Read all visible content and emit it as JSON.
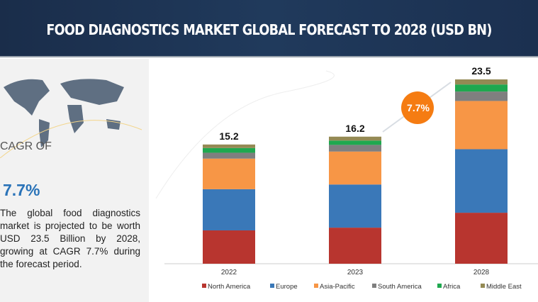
{
  "header": {
    "title": "FOOD DIAGNOSTICS MARKET GLOBAL FORECAST TO 2028 (USD BN)"
  },
  "left_panel": {
    "cagr_label": "CAGR OF",
    "cagr_value": "7.7%",
    "description": "The global food diagnostics market is projected to be worth USD 23.5 Billion by 2028, growing at CAGR 7.7% during the forecast period."
  },
  "chart_data": {
    "type": "bar",
    "stacked": true,
    "title": "FOOD DIAGNOSTICS MARKET GLOBAL FORECAST TO 2028 (USD BN)",
    "categories": [
      "2022",
      "2023",
      "2028"
    ],
    "totals": [
      "15.2",
      "16.2",
      "23.5"
    ],
    "cagr_badge": "7.7%",
    "legend_position": "bottom",
    "grid": false,
    "series": [
      {
        "name": "North America",
        "color": "#b8352f",
        "values": [
          4.25,
          4.6,
          6.5
        ]
      },
      {
        "name": "Europe",
        "color": "#3a78b8",
        "values": [
          5.25,
          5.5,
          8.1
        ]
      },
      {
        "name": "Asia-Pacific",
        "color": "#f79646",
        "values": [
          3.9,
          4.2,
          6.15
        ]
      },
      {
        "name": "South America",
        "color": "#7f7f7f",
        "values": [
          0.75,
          0.85,
          1.2
        ]
      },
      {
        "name": "Africa",
        "color": "#1fa84f",
        "values": [
          0.6,
          0.55,
          0.9
        ]
      },
      {
        "name": "Middle East",
        "color": "#948a54",
        "values": [
          0.45,
          0.5,
          0.65
        ]
      }
    ],
    "ylim": [
      0,
      23.5
    ]
  }
}
